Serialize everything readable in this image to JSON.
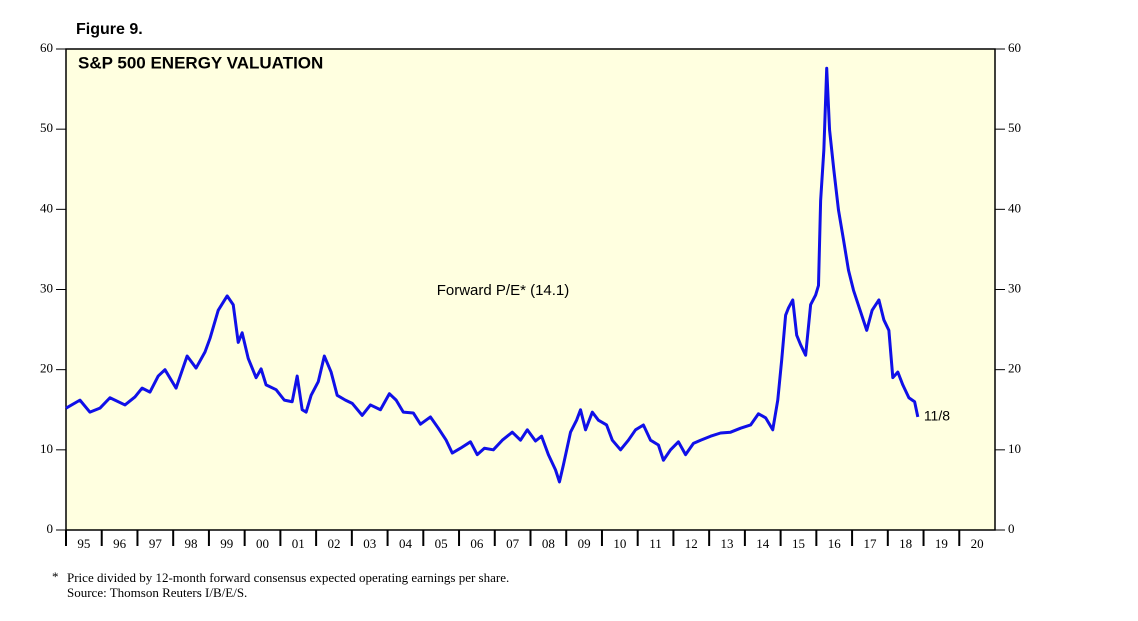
{
  "chart_data": {
    "type": "line",
    "figure_label": "Figure 9.",
    "title": "S&P 500 ENERGY VALUATION",
    "x": [
      1995.0,
      1995.39,
      1995.67,
      1995.95,
      1996.23,
      1996.65,
      1996.93,
      1997.13,
      1997.35,
      1997.58,
      1997.77,
      1998.08,
      1998.39,
      1998.64,
      1998.89,
      1999.03,
      1999.26,
      1999.51,
      1999.68,
      1999.82,
      1999.93,
      2000.1,
      2000.32,
      2000.46,
      2000.6,
      2000.88,
      2001.11,
      2001.33,
      2001.47,
      2001.61,
      2001.72,
      2001.86,
      2002.06,
      2002.23,
      2002.42,
      2002.59,
      2002.82,
      2003.01,
      2003.29,
      2003.52,
      2003.8,
      2004.05,
      2004.24,
      2004.44,
      2004.72,
      2004.92,
      2005.2,
      2005.42,
      2005.64,
      2005.81,
      2006.04,
      2006.32,
      2006.51,
      2006.71,
      2006.96,
      2007.21,
      2007.49,
      2007.72,
      2007.91,
      2008.14,
      2008.31,
      2008.5,
      2008.7,
      2008.81,
      2008.92,
      2009.12,
      2009.29,
      2009.4,
      2009.54,
      2009.73,
      2009.9,
      2010.13,
      2010.29,
      2010.52,
      2010.74,
      2010.94,
      2011.16,
      2011.36,
      2011.58,
      2011.72,
      2011.92,
      2012.14,
      2012.34,
      2012.56,
      2012.76,
      2013.04,
      2013.32,
      2013.6,
      2013.88,
      2014.16,
      2014.38,
      2014.58,
      2014.78,
      2014.92,
      2015.03,
      2015.14,
      2015.22,
      2015.34,
      2015.45,
      2015.56,
      2015.7,
      2015.84,
      2015.98,
      2016.06,
      2016.12,
      2016.21,
      2016.29,
      2016.37,
      2016.49,
      2016.62,
      2016.76,
      2016.9,
      2017.04,
      2017.24,
      2017.41,
      2017.56,
      2017.75,
      2017.89,
      2018.03,
      2018.14,
      2018.28,
      2018.42,
      2018.59,
      2018.75,
      2018.84
    ],
    "series": [
      {
        "name": "Forward P/E* (14.1)",
        "color": "#1010e8",
        "values": [
          15.2,
          16.2,
          14.7,
          15.2,
          16.5,
          15.6,
          16.6,
          17.7,
          17.2,
          19.2,
          20.0,
          17.7,
          21.7,
          20.2,
          22.2,
          23.9,
          27.4,
          29.2,
          28.1,
          23.4,
          24.6,
          21.4,
          19.0,
          20.1,
          18.1,
          17.5,
          16.2,
          16.0,
          19.2,
          15.0,
          14.7,
          16.8,
          18.5,
          21.7,
          19.7,
          16.8,
          16.2,
          15.8,
          14.3,
          15.6,
          15.0,
          17.0,
          16.2,
          14.7,
          14.6,
          13.2,
          14.1,
          12.7,
          11.2,
          9.6,
          10.2,
          11.0,
          9.4,
          10.2,
          10.0,
          11.2,
          12.2,
          11.2,
          12.5,
          11.1,
          11.7,
          9.4,
          7.5,
          6.0,
          8.1,
          12.2,
          13.7,
          15.0,
          12.5,
          14.7,
          13.7,
          13.1,
          11.2,
          10.0,
          11.2,
          12.5,
          13.1,
          11.2,
          10.6,
          8.7,
          10.0,
          11.0,
          9.4,
          10.8,
          11.2,
          11.7,
          12.1,
          12.2,
          12.7,
          13.1,
          14.5,
          14.0,
          12.5,
          16.2,
          21.2,
          26.8,
          27.7,
          28.7,
          24.3,
          23.1,
          21.8,
          28.1,
          29.3,
          30.5,
          41.1,
          47.4,
          57.6,
          49.9,
          44.9,
          39.9,
          36.2,
          32.4,
          29.9,
          27.2,
          24.9,
          27.4,
          28.7,
          26.2,
          24.9,
          19.0,
          19.7,
          18.1,
          16.5,
          16.0,
          14.1
        ]
      }
    ],
    "end_label": "11/8",
    "xlim": [
      1995,
      2021
    ],
    "xticks": [
      {
        "value": 1995,
        "label": "95"
      },
      {
        "value": 1996,
        "label": "96"
      },
      {
        "value": 1997,
        "label": "97"
      },
      {
        "value": 1998,
        "label": "98"
      },
      {
        "value": 1999,
        "label": "99"
      },
      {
        "value": 2000,
        "label": "00"
      },
      {
        "value": 2001,
        "label": "01"
      },
      {
        "value": 2002,
        "label": "02"
      },
      {
        "value": 2003,
        "label": "03"
      },
      {
        "value": 2004,
        "label": "04"
      },
      {
        "value": 2005,
        "label": "05"
      },
      {
        "value": 2006,
        "label": "06"
      },
      {
        "value": 2007,
        "label": "07"
      },
      {
        "value": 2008,
        "label": "08"
      },
      {
        "value": 2009,
        "label": "09"
      },
      {
        "value": 2010,
        "label": "10"
      },
      {
        "value": 2011,
        "label": "11"
      },
      {
        "value": 2012,
        "label": "12"
      },
      {
        "value": 2013,
        "label": "13"
      },
      {
        "value": 2014,
        "label": "14"
      },
      {
        "value": 2015,
        "label": "15"
      },
      {
        "value": 2016,
        "label": "16"
      },
      {
        "value": 2017,
        "label": "17"
      },
      {
        "value": 2018,
        "label": "18"
      },
      {
        "value": 2019,
        "label": "19"
      },
      {
        "value": 2020,
        "label": "20"
      }
    ],
    "ylim": [
      0,
      60
    ],
    "yticks": [
      0,
      10,
      20,
      30,
      40,
      50,
      60
    ],
    "y2lim": [
      0,
      60
    ],
    "y2ticks": [
      0,
      10,
      20,
      30,
      40,
      50,
      60
    ],
    "background": "#ffffe0",
    "footnotes": [
      "*",
      "Price divided by 12-month forward consensus expected operating earnings per share.",
      "Source: Thomson Reuters I/B/E/S."
    ]
  }
}
